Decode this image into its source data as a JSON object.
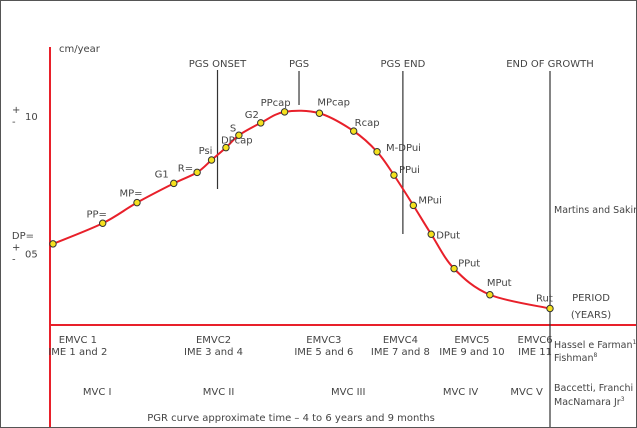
{
  "chart_data": {
    "type": "line",
    "unit_label": "cm/year",
    "y_ticks": [
      {
        "value": 10,
        "sign_top": "+",
        "sign_bottom": "-",
        "label": "10"
      },
      {
        "value": 5,
        "sign_top": "+",
        "sign_bottom": "-",
        "label": "05"
      }
    ],
    "ylim": [
      2.4,
      13.6
    ],
    "time_range": [
      0,
      100
    ],
    "markers": [
      {
        "label": "PGS ONSET",
        "t": 33.1
      },
      {
        "label": "PGS",
        "t": 49.5
      },
      {
        "label": "PGS END",
        "t": 70.4
      },
      {
        "label": "END OF GROWTH",
        "t": 100
      }
    ],
    "points": [
      {
        "label": "DP=",
        "t": 0.0,
        "v": 5.35
      },
      {
        "label": "PP=",
        "t": 10.0,
        "v": 6.1
      },
      {
        "label": "MP=",
        "t": 16.9,
        "v": 6.85
      },
      {
        "label": "G1",
        "t": 24.3,
        "v": 7.55
      },
      {
        "label": "Psi",
        "t": 31.9,
        "v": 8.4
      },
      {
        "label": "R=",
        "t": 29.0,
        "v": 7.95
      },
      {
        "label": "DPcap",
        "t": 34.8,
        "v": 8.85
      },
      {
        "label": "S",
        "t": 37.4,
        "v": 9.3
      },
      {
        "label": "G2",
        "t": 41.8,
        "v": 9.75
      },
      {
        "label": "PPcap",
        "t": 46.6,
        "v": 10.15
      },
      {
        "label": "MPcap",
        "t": 53.6,
        "v": 10.1
      },
      {
        "label": "Rcap",
        "t": 60.5,
        "v": 9.45
      },
      {
        "label": "M-DPui",
        "t": 65.2,
        "v": 8.7
      },
      {
        "label": "PPui",
        "t": 68.6,
        "v": 7.85
      },
      {
        "label": "MPui",
        "t": 72.5,
        "v": 6.75
      },
      {
        "label": "DPut",
        "t": 76.1,
        "v": 5.7
      },
      {
        "label": "PPut",
        "t": 80.7,
        "v": 4.45
      },
      {
        "label": "MPut",
        "t": 87.9,
        "v": 3.5
      },
      {
        "label": "Rut",
        "t": 100.0,
        "v": 3.0
      }
    ],
    "period_label": [
      "PERIOD",
      "(YEARS)"
    ],
    "emvc": [
      {
        "lines": [
          "EMVC 1",
          "IME 1 and 2"
        ],
        "t": 5.0
      },
      {
        "lines": [
          "EMVC2",
          "IME 3 and 4"
        ],
        "t": 32.3
      },
      {
        "lines": [
          "EMVC3",
          "IME 5 and 6"
        ],
        "t": 54.5
      },
      {
        "lines": [
          "EMVC4",
          "IME 7 and 8"
        ],
        "t": 69.9
      },
      {
        "lines": [
          "EMVC5",
          "IME 9 and 10"
        ],
        "t": 84.3
      },
      {
        "lines": [
          "EMVC6",
          "IME 11"
        ],
        "t": 97.0
      }
    ],
    "mvc": [
      {
        "label": "MVC I",
        "t": 8.9
      },
      {
        "label": "MVC II",
        "t": 33.3
      },
      {
        "label": "MVC III",
        "t": 59.4
      },
      {
        "label": "MVC IV",
        "t": 82.0
      },
      {
        "label": "MVC V",
        "t": 95.3
      }
    ],
    "sources": {
      "martins": "Martins and Sakima",
      "hassel_text": "Hassel e Farman",
      "hassel_sup": "17",
      "fishman_text": "Fishman",
      "fishman_sup": "8",
      "baccetti_line1": "Baccetti, Franchi and",
      "baccetti_line2_text": "MacNamara Jr",
      "baccetti_sup": "3"
    },
    "footer": "PGR curve approximate time – 4 to 6 years and 9 months",
    "colors": {
      "curve": "#e8202a",
      "axis": "#e8202a",
      "point_fill": "#f5e11e",
      "point_stroke": "#333333",
      "guide": "#333333"
    }
  }
}
